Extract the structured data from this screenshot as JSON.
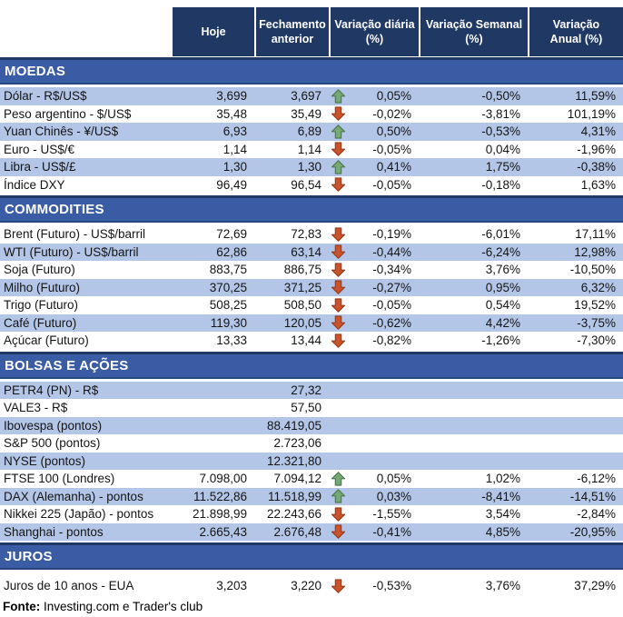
{
  "columns": [
    {
      "label": "Hoje"
    },
    {
      "label": "Fechamento\nanterior"
    },
    {
      "label": "Variação diária\n(%)"
    },
    {
      "label": "Variação Semanal\n(%)"
    },
    {
      "label": "Variação\nAnual (%)"
    }
  ],
  "sections": [
    {
      "id": "moedas",
      "title": "MOEDAS",
      "stripe_start": "light",
      "rows": [
        {
          "label": "Dólar - R$/US$",
          "hoje": "3,699",
          "fechamento": "3,697",
          "arrow": "up",
          "diaria": "0,05%",
          "semanal": "-0,50%",
          "anual": "11,59%"
        },
        {
          "label": "Peso argentino - $/US$",
          "hoje": "35,48",
          "fechamento": "35,49",
          "arrow": "down",
          "diaria": "-0,02%",
          "semanal": "-3,81%",
          "anual": "101,19%"
        },
        {
          "label": "Yuan Chinês - ¥/US$",
          "hoje": "6,93",
          "fechamento": "6,89",
          "arrow": "up",
          "diaria": "0,50%",
          "semanal": "-0,53%",
          "anual": "4,31%"
        },
        {
          "label": "Euro - US$/€",
          "hoje": "1,14",
          "fechamento": "1,14",
          "arrow": "down",
          "diaria": "-0,05%",
          "semanal": "0,04%",
          "anual": "-1,96%"
        },
        {
          "label": "Libra - US$/£",
          "hoje": "1,30",
          "fechamento": "1,30",
          "arrow": "up",
          "diaria": "0,41%",
          "semanal": "1,75%",
          "anual": "-0,38%"
        },
        {
          "label": "Índice DXY",
          "hoje": "96,49",
          "fechamento": "96,54",
          "arrow": "down",
          "diaria": "-0,05%",
          "semanal": "-0,18%",
          "anual": "1,63%"
        }
      ]
    },
    {
      "id": "commodities",
      "title": "COMMODITIES",
      "stripe_start": "white",
      "rows": [
        {
          "label": "Brent (Futuro) - US$/barril",
          "hoje": "72,69",
          "fechamento": "72,83",
          "arrow": "down",
          "diaria": "-0,19%",
          "semanal": "-6,01%",
          "anual": "17,11%"
        },
        {
          "label": "WTI (Futuro) - US$/barril",
          "hoje": "62,86",
          "fechamento": "63,14",
          "arrow": "down",
          "diaria": "-0,44%",
          "semanal": "-6,24%",
          "anual": "12,98%"
        },
        {
          "label": "Soja (Futuro)",
          "hoje": "883,75",
          "fechamento": "886,75",
          "arrow": "down",
          "diaria": "-0,34%",
          "semanal": "3,76%",
          "anual": "-10,50%"
        },
        {
          "label": "Milho (Futuro)",
          "hoje": "370,25",
          "fechamento": "371,25",
          "arrow": "down",
          "diaria": "-0,27%",
          "semanal": "0,95%",
          "anual": "6,32%"
        },
        {
          "label": "Trigo (Futuro)",
          "hoje": "508,25",
          "fechamento": "508,50",
          "arrow": "down",
          "diaria": "-0,05%",
          "semanal": "0,54%",
          "anual": "19,52%"
        },
        {
          "label": "Café (Futuro)",
          "hoje": "119,30",
          "fechamento": "120,05",
          "arrow": "down",
          "diaria": "-0,62%",
          "semanal": "4,42%",
          "anual": "-3,75%"
        },
        {
          "label": "Açúcar (Futuro)",
          "hoje": "13,33",
          "fechamento": "13,44",
          "arrow": "down",
          "diaria": "-0,82%",
          "semanal": "-1,26%",
          "anual": "-7,30%"
        }
      ]
    },
    {
      "id": "bolsas",
      "title": "BOLSAS E AÇÕES",
      "stripe_start": "light",
      "rows": [
        {
          "label": "PETR4 (PN) - R$",
          "hoje": "",
          "fechamento": "27,32",
          "arrow": "none",
          "diaria": "",
          "semanal": "",
          "anual": ""
        },
        {
          "label": "VALE3 - R$",
          "hoje": "",
          "fechamento": "57,50",
          "arrow": "none",
          "diaria": "",
          "semanal": "",
          "anual": ""
        },
        {
          "label": "Ibovespa (pontos)",
          "hoje": "",
          "fechamento": "88.419,05",
          "arrow": "none",
          "diaria": "",
          "semanal": "",
          "anual": ""
        },
        {
          "label": "S&P 500 (pontos)",
          "hoje": "",
          "fechamento": "2.723,06",
          "arrow": "none",
          "diaria": "",
          "semanal": "",
          "anual": ""
        },
        {
          "label": "NYSE (pontos)",
          "hoje": "",
          "fechamento": "12.321,80",
          "arrow": "none",
          "diaria": "",
          "semanal": "",
          "anual": ""
        },
        {
          "label": "FTSE 100 (Londres)",
          "hoje": "7.098,00",
          "fechamento": "7.094,12",
          "arrow": "up",
          "diaria": "0,05%",
          "semanal": "1,02%",
          "anual": "-6,12%"
        },
        {
          "label": "DAX (Alemanha) - pontos",
          "hoje": "11.522,86",
          "fechamento": "11.518,99",
          "arrow": "up",
          "diaria": "0,03%",
          "semanal": "-8,41%",
          "anual": "-14,51%"
        },
        {
          "label": "Nikkei 225 (Japão) - pontos",
          "hoje": "21.898,99",
          "fechamento": "22.243,66",
          "arrow": "down",
          "diaria": "-1,55%",
          "semanal": "3,54%",
          "anual": "-2,84%"
        },
        {
          "label": "Shanghai - pontos",
          "hoje": "2.665,43",
          "fechamento": "2.676,48",
          "arrow": "down",
          "diaria": "-0,41%",
          "semanal": "4,85%",
          "anual": "-20,95%"
        }
      ]
    },
    {
      "id": "juros",
      "title": "JUROS",
      "stripe_start": "white",
      "rows": [
        {
          "label": "Juros de 10 anos - EUA",
          "hoje": "3,203",
          "fechamento": "3,220",
          "arrow": "down",
          "diaria": "-0,53%",
          "semanal": "3,76%",
          "anual": "37,29%"
        }
      ]
    }
  ],
  "footer": {
    "label": "Fonte:",
    "text": " Investing.com e Trader's club"
  },
  "colors": {
    "header_bg": "#1F3864",
    "section_bg": "#3A5CA5",
    "row_light": "#B4C6E7",
    "arrow_up_fill": "#74A874",
    "arrow_up_border": "#4E7A52",
    "arrow_down_fill": "#C8532C",
    "arrow_down_border": "#9A3D1C"
  }
}
